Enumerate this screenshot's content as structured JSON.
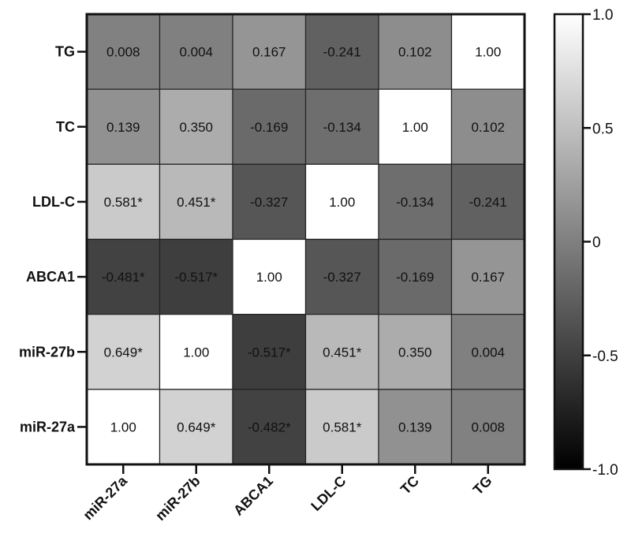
{
  "chart_data": {
    "type": "heatmap",
    "title": "",
    "xlabel": "",
    "ylabel": "",
    "x_categories": [
      "miR-27a",
      "miR-27b",
      "ABCA1",
      "LDL-C",
      "TC",
      "TG"
    ],
    "y_categories_top_to_bottom": [
      "TG",
      "TC",
      "LDL-C",
      "ABCA1",
      "miR-27b",
      "miR-27a"
    ],
    "values": [
      [
        0.008,
        0.004,
        0.167,
        -0.241,
        0.102,
        1.0
      ],
      [
        0.139,
        0.35,
        -0.169,
        -0.134,
        1.0,
        0.102
      ],
      [
        0.581,
        0.451,
        -0.327,
        1.0,
        -0.134,
        -0.241
      ],
      [
        -0.481,
        -0.517,
        1.0,
        -0.327,
        -0.169,
        0.167
      ],
      [
        0.649,
        1.0,
        -0.517,
        0.451,
        0.35,
        0.004
      ],
      [
        1.0,
        0.649,
        -0.482,
        0.581,
        0.139,
        0.008
      ]
    ],
    "labels": [
      [
        "0.008",
        "0.004",
        "0.167",
        "-0.241",
        "0.102",
        "1.00"
      ],
      [
        "0.139",
        "0.350",
        "-0.169",
        "-0.134",
        "1.00",
        "0.102"
      ],
      [
        "0.581*",
        "0.451*",
        "-0.327",
        "1.00",
        "-0.134",
        "-0.241"
      ],
      [
        "-0.481*",
        "-0.517*",
        "1.00",
        "-0.327",
        "-0.169",
        "0.167"
      ],
      [
        "0.649*",
        "1.00",
        "-0.517*",
        "0.451*",
        "0.350",
        "0.004"
      ],
      [
        "1.00",
        "0.649*",
        "-0.482*",
        "0.581*",
        "0.139",
        "0.008"
      ]
    ],
    "color_scale": {
      "min": -1.0,
      "max": 1.0,
      "min_color": "#000000",
      "max_color": "#ffffff",
      "ticks": [
        1.0,
        0.5,
        0,
        -0.5,
        -1.0
      ],
      "tick_labels": [
        "1.0",
        "0.5",
        "0",
        "-0.5",
        "-1.0"
      ]
    },
    "legend_position": "right",
    "grid": true
  }
}
